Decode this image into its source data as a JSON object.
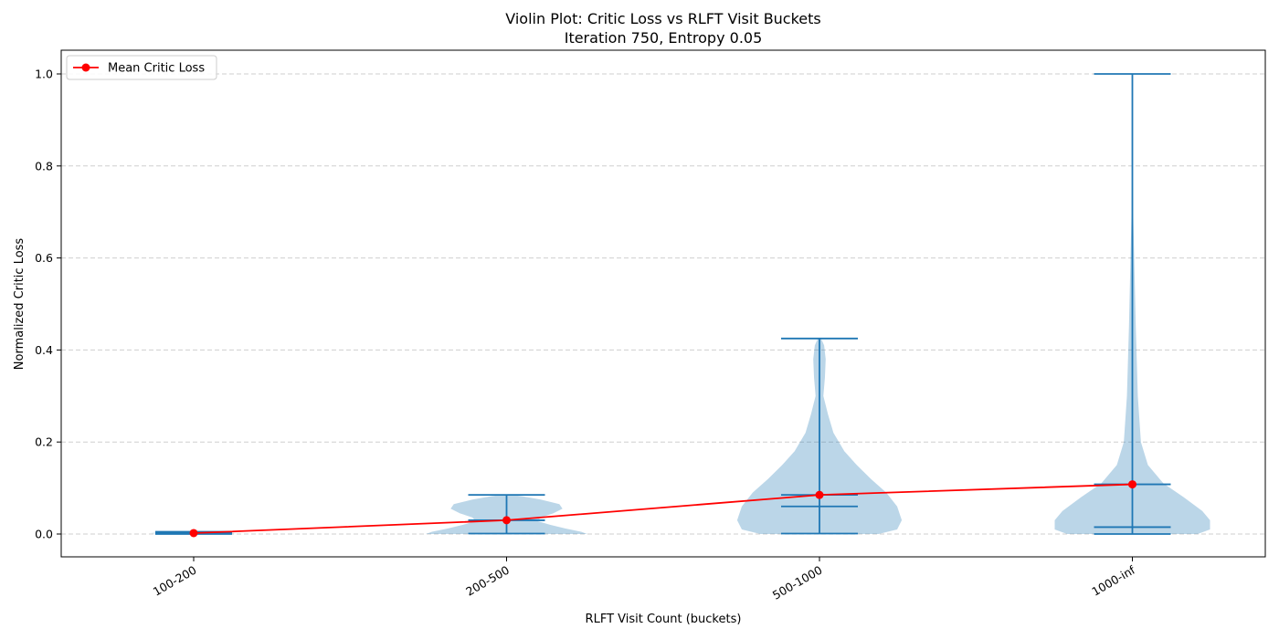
{
  "chart_data": {
    "type": "violin",
    "title": "Violin Plot: Critic Loss vs RLFT Visit Buckets",
    "subtitle": "Iteration 750, Entropy 0.05",
    "xlabel": "RLFT Visit Count (buckets)",
    "ylabel": "Normalized Critic Loss",
    "categories": [
      "100-200",
      "200-500",
      "500-1000",
      "1000-inf"
    ],
    "ylim": [
      -0.05,
      1.05
    ],
    "yticks": [
      0.0,
      0.2,
      0.4,
      0.6,
      0.8,
      1.0
    ],
    "ytick_labels": [
      "0.0",
      "0.2",
      "0.4",
      "0.6",
      "0.8",
      "1.0"
    ],
    "grid": "y-dashed",
    "legend_placement": "top-left",
    "violins": [
      {
        "category": "100-200",
        "min": 0.0,
        "max": 0.005,
        "median": 0.002,
        "mean": 0.002,
        "density": [
          [
            0.0,
            0.2
          ],
          [
            0.002,
            0.28
          ],
          [
            0.004,
            0.2
          ],
          [
            0.005,
            0.1
          ]
        ]
      },
      {
        "category": "200-500",
        "min": 0.001,
        "max": 0.085,
        "median": 0.03,
        "mean": 0.03,
        "density": [
          [
            0.0,
            0.52
          ],
          [
            0.005,
            0.48
          ],
          [
            0.012,
            0.38
          ],
          [
            0.02,
            0.28
          ],
          [
            0.028,
            0.2
          ],
          [
            0.036,
            0.22
          ],
          [
            0.045,
            0.3
          ],
          [
            0.055,
            0.36
          ],
          [
            0.065,
            0.34
          ],
          [
            0.075,
            0.22
          ],
          [
            0.082,
            0.1
          ],
          [
            0.085,
            0.03
          ]
        ]
      },
      {
        "category": "500-1000",
        "min": 0.001,
        "max": 0.425,
        "median": 0.06,
        "mean": 0.085,
        "density": [
          [
            0.0,
            0.38
          ],
          [
            0.01,
            0.5
          ],
          [
            0.03,
            0.53
          ],
          [
            0.06,
            0.5
          ],
          [
            0.09,
            0.43
          ],
          [
            0.12,
            0.33
          ],
          [
            0.15,
            0.24
          ],
          [
            0.18,
            0.16
          ],
          [
            0.22,
            0.09
          ],
          [
            0.26,
            0.055
          ],
          [
            0.3,
            0.025
          ],
          [
            0.34,
            0.035
          ],
          [
            0.38,
            0.04
          ],
          [
            0.41,
            0.03
          ],
          [
            0.425,
            0.01
          ]
        ]
      },
      {
        "category": "1000-inf",
        "min": 0.0,
        "max": 1.0,
        "median": 0.015,
        "mean": 0.108,
        "density": [
          [
            0.0,
            0.42
          ],
          [
            0.01,
            0.5
          ],
          [
            0.03,
            0.5
          ],
          [
            0.05,
            0.45
          ],
          [
            0.08,
            0.33
          ],
          [
            0.11,
            0.2
          ],
          [
            0.15,
            0.1
          ],
          [
            0.2,
            0.055
          ],
          [
            0.3,
            0.035
          ],
          [
            0.45,
            0.022
          ],
          [
            0.6,
            0.012
          ],
          [
            0.7,
            0.005
          ],
          [
            0.8,
            0.002
          ],
          [
            1.0,
            0.0
          ]
        ]
      }
    ],
    "series": [
      {
        "name": "Mean Critic Loss",
        "values": [
          0.002,
          0.03,
          0.085,
          0.108
        ]
      }
    ]
  },
  "colors": {
    "violin_fill": "#1f77b4",
    "violin_stroke": "#1f77b4",
    "mean_line": "#ff0000"
  }
}
